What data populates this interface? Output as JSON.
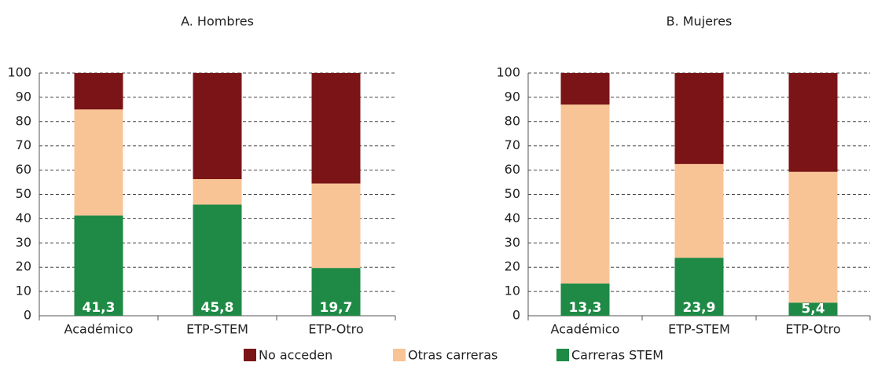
{
  "chart_data": [
    {
      "type": "bar",
      "stacked": true,
      "title": "A. Hombres",
      "categories": [
        "Académico",
        "ETP-STEM",
        "ETP-Otro"
      ],
      "series": [
        {
          "name": "Carreras STEM",
          "color": "#1e8a45",
          "values": [
            41.3,
            45.8,
            19.7
          ],
          "value_labels": [
            "41,3",
            "45,8",
            "19,7"
          ]
        },
        {
          "name": "Otras carreras",
          "color": "#f9c495",
          "values": [
            43.7,
            10.5,
            34.8
          ]
        },
        {
          "name": "No acceden",
          "color": "#7b1416",
          "values": [
            15,
            43.7,
            45.5
          ]
        }
      ],
      "ylim": [
        0,
        100
      ],
      "yticks": [
        0,
        10,
        20,
        30,
        40,
        50,
        60,
        70,
        80,
        90,
        100
      ],
      "grid": true
    },
    {
      "type": "bar",
      "stacked": true,
      "title": "B. Mujeres",
      "categories": [
        "Académico",
        "ETP-STEM",
        "ETP-Otro"
      ],
      "series": [
        {
          "name": "Carreras STEM",
          "color": "#1e8a45",
          "values": [
            13.3,
            23.9,
            5.4
          ],
          "value_labels": [
            "13,3",
            "23,9",
            "5,4"
          ]
        },
        {
          "name": "Otras carreras",
          "color": "#f9c495",
          "values": [
            73.7,
            38.6,
            53.9
          ]
        },
        {
          "name": "No acceden",
          "color": "#7b1416",
          "values": [
            13,
            37.5,
            40.7
          ]
        }
      ],
      "ylim": [
        0,
        100
      ],
      "yticks": [
        0,
        10,
        20,
        30,
        40,
        50,
        60,
        70,
        80,
        90,
        100
      ],
      "grid": true
    }
  ]
}
